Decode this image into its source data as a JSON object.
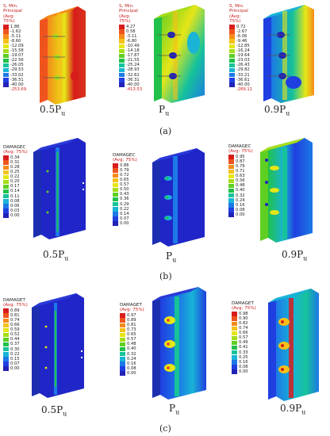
{
  "palette": [
    "#d81c1c",
    "#f0541e",
    "#f58b1a",
    "#f5c118",
    "#e6e617",
    "#a6dd18",
    "#5fcf22",
    "#21c14a",
    "#16c29a",
    "#19b4d6",
    "#1c79e6",
    "#1f3fe0",
    "#2222b8"
  ],
  "row_a": {
    "caption": "(a)",
    "legends": [
      {
        "title": "S, Min. Principal",
        "avg": "(Avg: 75%)",
        "values": [
          "1.86",
          "-1.62",
          "-5.11",
          "-8.60",
          "-12.09",
          "-15.58",
          "-19.07",
          "-22.56",
          "-26.05",
          "-29.53",
          "-33.02",
          "-36.51",
          "-40.00",
          "-253.69"
        ],
        "load": "0.5P",
        "sub": "u"
      },
      {
        "title": "S, Min. Principal",
        "avg": "(Avg: 75%)",
        "values": [
          "4.27",
          "0.58",
          "-3.11",
          "-6.80",
          "-10.49",
          "-14.18",
          "-17.87",
          "-21.55",
          "-25.24",
          "-28.93",
          "-32.62",
          "-36.31",
          "-40.00",
          "-413.53"
        ],
        "load": "P",
        "sub": "u"
      },
      {
        "title": "S, Min. Principal",
        "avg": "(Avg: 75%)",
        "values": [
          "0.72",
          "-2.67",
          "-6.06",
          "-9.46",
          "-12.85",
          "-16.24",
          "-19.64",
          "-23.03",
          "-26.43",
          "-29.82",
          "-33.21",
          "-36.61",
          "-40.00",
          "-289.11"
        ],
        "load": "0.9P",
        "sub": "u"
      }
    ]
  },
  "row_b": {
    "caption": "(b)",
    "legends": [
      {
        "title": "DAMAGEC",
        "avg": "(Avg: 75%)",
        "values": [
          "0.34",
          "0.31",
          "0.28",
          "0.25",
          "0.22",
          "0.20",
          "0.17",
          "0.14",
          "0.11",
          "0.08",
          "0.06",
          "0.03",
          "0.00"
        ],
        "load": "0.5P",
        "sub": "u"
      },
      {
        "title": "DAMAGEC",
        "avg": "(Avg: 75%)",
        "values": [
          "0.86",
          "0.79",
          "0.72",
          "0.65",
          "0.57",
          "0.50",
          "0.43",
          "0.36",
          "0.29",
          "0.22",
          "0.14",
          "0.07",
          "0.00"
        ],
        "load": "P",
        "sub": "u"
      },
      {
        "title": "DAMAGEC",
        "avg": "(Avg: 75%)",
        "values": [
          "0.95",
          "0.87",
          "0.79",
          "0.71",
          "0.63",
          "0.56",
          "0.48",
          "0.40",
          "0.32",
          "0.24",
          "0.16",
          "0.08",
          "0.00"
        ],
        "load": "0.9P",
        "sub": "u"
      }
    ]
  },
  "row_c": {
    "caption": "(c)",
    "legends": [
      {
        "title": "DAMAGET",
        "avg": "(Avg: 75%)",
        "values": [
          "0.89",
          "0.81",
          "0.74",
          "0.66",
          "0.59",
          "0.52",
          "0.44",
          "0.37",
          "0.30",
          "0.22",
          "0.15",
          "0.07",
          "0.00"
        ],
        "load": "0.5P",
        "sub": "u"
      },
      {
        "title": "DAMAGET",
        "avg": "(Avg: 75%)",
        "values": [
          "0.97",
          "0.89",
          "0.81",
          "0.73",
          "0.65",
          "0.57",
          "0.48",
          "0.40",
          "0.32",
          "0.24",
          "0.16",
          "0.08",
          "0.00"
        ],
        "load": "P",
        "sub": "u"
      },
      {
        "title": "DAMAGET",
        "avg": "(Avg: 75%)",
        "values": [
          "0.98",
          "0.90",
          "0.82",
          "0.74",
          "0.66",
          "0.57",
          "0.49",
          "0.41",
          "0.33",
          "0.25",
          "0.16",
          "0.08",
          "0.00"
        ],
        "load": "0.9P",
        "sub": "u"
      }
    ]
  }
}
